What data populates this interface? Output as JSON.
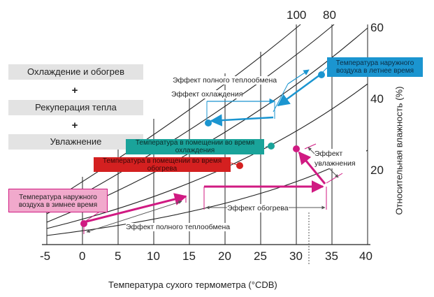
{
  "steps": {
    "step1": "Охлаждение и обогрев",
    "plus1": "+",
    "step2": "Рекуперация тепла",
    "plus2": "+",
    "step3": "Увлажнение"
  },
  "labels": {
    "summer_outdoor": "Температура наружного воздуха в летнее время",
    "winter_outdoor": "Температура наружного воздуха в зимнее время",
    "indoor_cooling": "Температура в помещении во время охлаждения",
    "indoor_heating": "Температура в помещении во время обогрева",
    "full_exchange_summer": "Эффект полного теплообмена",
    "cooling_effect": "Эффект охлаждения",
    "humidification_effect": "Эффект увлажнения",
    "heating_effect": "Эффект обогрева",
    "full_exchange_winter": "Эффект полного теплообмена"
  },
  "axes": {
    "x_title": "Температура сухого термометра (°CDB)",
    "y_title": "Относительная влажность (%)"
  },
  "chart_data": {
    "type": "diagram",
    "x_ticks": [
      "-5",
      "0",
      "5",
      "10",
      "15",
      "20",
      "25",
      "30",
      "35",
      "40"
    ],
    "rh_curve_labels_top": [
      "100",
      "80"
    ],
    "rh_right_labels": [
      "60",
      "40",
      "20"
    ],
    "points": [
      {
        "name": "Температура наружного воздуха в летнее время",
        "x": 34,
        "color": "#1b95d0"
      },
      {
        "name": "Температура в помещении во время охлаждения",
        "x": 27,
        "color": "#1aa39a"
      },
      {
        "name": "Температура в помещении во время обогрева",
        "x": 22,
        "color": "#d42020"
      },
      {
        "name": "Температура наружного воздуха в зимнее время",
        "x": 0,
        "color": "#d01a82"
      },
      {
        "name": "Эффект увлажнения",
        "x": 30,
        "color": "#d01a82"
      }
    ],
    "colors": {
      "summer": "#1b95d0",
      "winter": "#d01a82",
      "cool_box": "#1aa39a",
      "heat_box": "#d42020"
    }
  }
}
